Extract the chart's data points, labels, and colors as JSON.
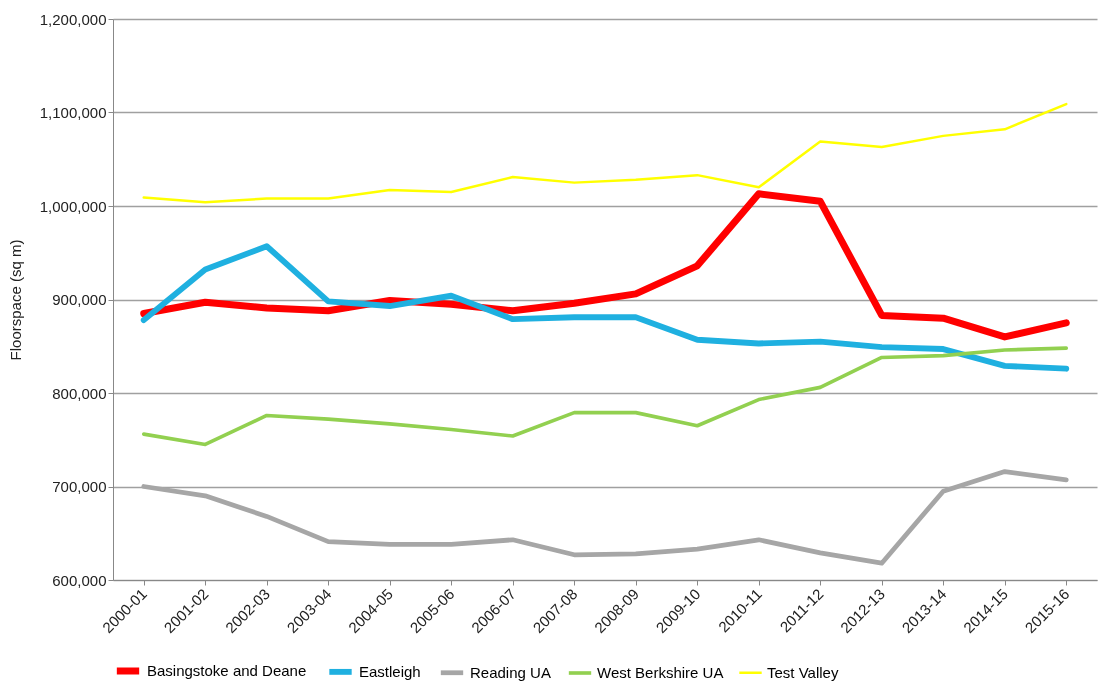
{
  "chart_data": {
    "type": "line",
    "ylabel": "Floorspace (sq m)",
    "categories": [
      "2000-01",
      "2001-02",
      "2002-03",
      "2003-04",
      "2004-05",
      "2005-06",
      "2006-07",
      "2007-08",
      "2008-09",
      "2009-10",
      "2010-11",
      "2011-12",
      "2012-13",
      "2013-14",
      "2014-15",
      "2015-16"
    ],
    "series": [
      {
        "name": "Basingstoke and Deane",
        "color": "#ff0000",
        "values": [
          885000,
          897000,
          891000,
          888000,
          899000,
          895000,
          888000,
          896000,
          906000,
          936000,
          1013000,
          1005000,
          883000,
          880000,
          860000,
          875000
        ]
      },
      {
        "name": "Eastleigh",
        "color": "#1fb0e0",
        "values": [
          878000,
          932000,
          957000,
          898000,
          893000,
          904000,
          879000,
          881000,
          881000,
          857000,
          853000,
          855000,
          849000,
          847000,
          829000,
          826000
        ]
      },
      {
        "name": "Reading UA",
        "color": "#a6a6a6",
        "values": [
          700000,
          690000,
          668000,
          641000,
          638000,
          638000,
          643000,
          627000,
          628000,
          633000,
          643000,
          629000,
          618000,
          695000,
          716000,
          707000
        ]
      },
      {
        "name": "West Berkshire UA",
        "color": "#92d050",
        "values": [
          756000,
          745000,
          776000,
          772000,
          767000,
          761000,
          754000,
          779000,
          779000,
          765000,
          793000,
          806000,
          838000,
          840000,
          846000,
          848000
        ]
      },
      {
        "name": "Test Valley",
        "color": "#ffff00",
        "values": [
          1009000,
          1004000,
          1008000,
          1008000,
          1017000,
          1015000,
          1031000,
          1025000,
          1028000,
          1033000,
          1020000,
          1069000,
          1063000,
          1075000,
          1082000,
          1109000
        ]
      }
    ],
    "ylim": [
      600000,
      1200000
    ],
    "yticks": [
      {
        "value": 600000,
        "label": "600,000"
      },
      {
        "value": 700000,
        "label": "700,000"
      },
      {
        "value": 800000,
        "label": "800,000"
      },
      {
        "value": 900000,
        "label": "900,000"
      },
      {
        "value": 1000000,
        "label": "1,000,000"
      },
      {
        "value": 1100000,
        "label": "1,100,000"
      },
      {
        "value": 1200000,
        "label": "1,200,000"
      }
    ],
    "grid": "y",
    "legend": "bottom"
  }
}
